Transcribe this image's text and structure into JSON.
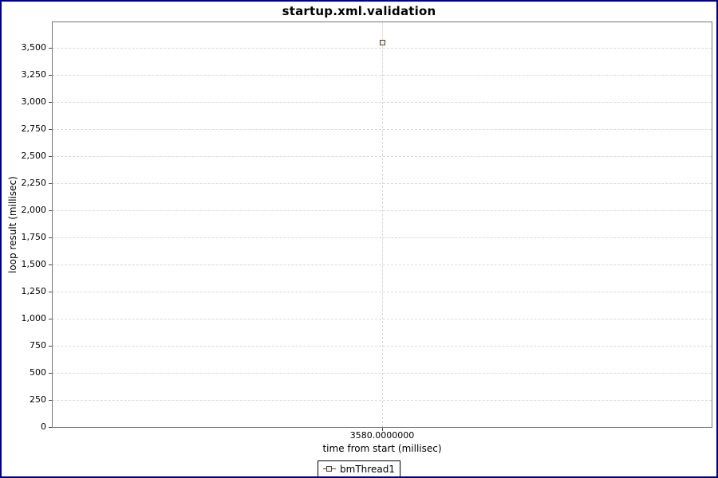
{
  "window": {
    "background": "#ffffff",
    "border_color": "#000080"
  },
  "chart_data": {
    "type": "scatter",
    "title": "startup.xml.validation",
    "xlabel": "time from start (millisec)",
    "ylabel": "loop result (millisec)",
    "xlim": [
      3579,
      3581
    ],
    "ylim": [
      0,
      3733
    ],
    "grid": true,
    "legend_position": "bottom",
    "x_ticks": [
      {
        "value": 3580,
        "label": "3580.0000000"
      }
    ],
    "y_ticks": [
      {
        "value": 0,
        "label": "0"
      },
      {
        "value": 250,
        "label": "250"
      },
      {
        "value": 500,
        "label": "500"
      },
      {
        "value": 750,
        "label": "750"
      },
      {
        "value": 1000,
        "label": "1,000"
      },
      {
        "value": 1250,
        "label": "1,250"
      },
      {
        "value": 1500,
        "label": "1,500"
      },
      {
        "value": 1750,
        "label": "1,750"
      },
      {
        "value": 2000,
        "label": "2,000"
      },
      {
        "value": 2250,
        "label": "2,250"
      },
      {
        "value": 2500,
        "label": "2,500"
      },
      {
        "value": 2750,
        "label": "2,750"
      },
      {
        "value": 3000,
        "label": "3,000"
      },
      {
        "value": 3250,
        "label": "3,250"
      },
      {
        "value": 3500,
        "label": "3,500"
      }
    ],
    "series": [
      {
        "name": "bmThread1",
        "marker": "hollow-square",
        "color": "#5f3a32",
        "marker_fill": "#e4f4ea",
        "points": [
          {
            "x": 3580,
            "y": 3547
          }
        ]
      }
    ]
  },
  "legend": {
    "items": [
      {
        "label": "bmThread1",
        "symbol": "line-square-marker"
      }
    ]
  },
  "colors": {
    "grid": "#d9d9d9",
    "plot_border": "#767676",
    "axis_tick": "#444444",
    "text": "#000000"
  }
}
